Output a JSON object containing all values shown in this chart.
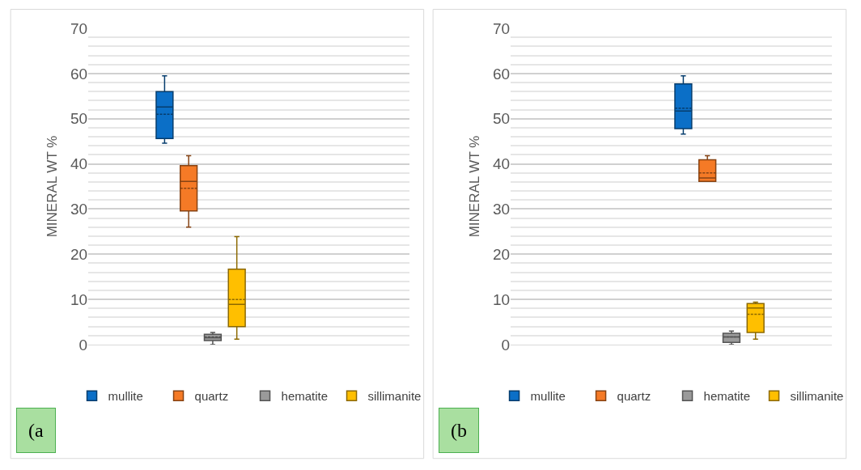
{
  "chart_data": [
    {
      "type": "box",
      "categories": [
        null
      ],
      "ylabel": "MINERAL WT %",
      "ylim": [
        0,
        70
      ],
      "yticks": [
        0,
        {
          "value": 2,
          "label": null
        },
        {
          "value": 4,
          "label": null
        },
        {
          "value": 6,
          "label": null
        },
        {
          "value": 8,
          "label": null
        },
        10,
        {
          "value": 12,
          "label": null
        },
        {
          "value": 14,
          "label": null
        },
        {
          "value": 16,
          "label": null
        },
        {
          "value": 18,
          "label": null
        },
        20,
        {
          "value": 22,
          "label": null
        },
        {
          "value": 24,
          "label": null
        },
        {
          "value": 26,
          "label": null
        },
        {
          "value": 28,
          "label": null
        },
        30,
        {
          "value": 32,
          "label": null
        },
        {
          "value": 34,
          "label": null
        },
        {
          "value": 36,
          "label": null
        },
        {
          "value": 38,
          "label": null
        },
        40,
        {
          "value": 42,
          "label": null
        },
        {
          "value": 44,
          "label": null
        },
        {
          "value": 46,
          "label": null
        },
        {
          "value": 48,
          "label": null
        },
        50,
        {
          "value": 52,
          "label": null
        },
        {
          "value": 54,
          "label": null
        },
        {
          "value": 56,
          "label": null
        },
        {
          "value": 58,
          "label": null
        },
        60,
        {
          "value": 62,
          "label": null
        },
        {
          "value": 64,
          "label": null
        },
        {
          "value": 66,
          "label": null
        },
        {
          "value": 68,
          "label": null
        },
        70
      ],
      "grid": "y",
      "legend": "bottom",
      "tick_labels": "y",
      "annotations": [
        "(a"
      ],
      "series": [
        {
          "name": "mullite",
          "color": "#0b6fc7",
          "boxes": [
            {
              "low": 44.6,
              "q1": 45.6,
              "median": 52.6,
              "q3": 56.0,
              "high": 59.5,
              "mean": 51.0
            }
          ]
        },
        {
          "name": "quartz",
          "color": "#f57a26",
          "boxes": [
            {
              "low": 26.0,
              "q1": 29.6,
              "median": 36.1,
              "q3": 39.6,
              "high": 41.8,
              "mean": 34.6
            }
          ]
        },
        {
          "name": "hematite",
          "color": "#9a9a9a",
          "boxes": [
            {
              "low": 0,
              "q1": 0.9,
              "median": 1.5,
              "q3": 2.3,
              "high": 2.7,
              "mean": 1.7
            }
          ]
        },
        {
          "name": "sillimanite",
          "color": "#ffbf00",
          "boxes": [
            {
              "low": 1.2,
              "q1": 4.0,
              "median": 8.9,
              "q3": 16.7,
              "high": 23.9,
              "mean": 10.0
            }
          ]
        }
      ]
    },
    {
      "type": "box",
      "categories": [
        null
      ],
      "ylabel": "MINERAL WT %",
      "ylim": [
        0,
        70
      ],
      "yticks": [
        0,
        {
          "value": 2,
          "label": null
        },
        {
          "value": 4,
          "label": null
        },
        {
          "value": 6,
          "label": null
        },
        {
          "value": 8,
          "label": null
        },
        10,
        {
          "value": 12,
          "label": null
        },
        {
          "value": 14,
          "label": null
        },
        {
          "value": 16,
          "label": null
        },
        {
          "value": 18,
          "label": null
        },
        20,
        {
          "value": 22,
          "label": null
        },
        {
          "value": 24,
          "label": null
        },
        {
          "value": 26,
          "label": null
        },
        {
          "value": 28,
          "label": null
        },
        30,
        {
          "value": 32,
          "label": null
        },
        {
          "value": 34,
          "label": null
        },
        {
          "value": 36,
          "label": null
        },
        {
          "value": 38,
          "label": null
        },
        40,
        {
          "value": 42,
          "label": null
        },
        {
          "value": 44,
          "label": null
        },
        {
          "value": 46,
          "label": null
        },
        {
          "value": 48,
          "label": null
        },
        50,
        {
          "value": 52,
          "label": null
        },
        {
          "value": 54,
          "label": null
        },
        {
          "value": 56,
          "label": null
        },
        {
          "value": 58,
          "label": null
        },
        60,
        {
          "value": 62,
          "label": null
        },
        {
          "value": 64,
          "label": null
        },
        {
          "value": 66,
          "label": null
        },
        {
          "value": 68,
          "label": null
        },
        70
      ],
      "grid": "y",
      "legend": "bottom",
      "tick_labels": "y",
      "annotations": [
        "(b"
      ],
      "series": [
        {
          "name": "mullite",
          "color": "#0b6fc7",
          "boxes": [
            {
              "low": 46.6,
              "q1": 47.8,
              "median": 51.7,
              "q3": 57.7,
              "high": 59.5,
              "mean": 52.3
            }
          ]
        },
        {
          "name": "quartz",
          "color": "#f57a26",
          "boxes": [
            {
              "low": 36.1,
              "q1": 36.1,
              "median": 36.9,
              "q3": 40.9,
              "high": 41.8,
              "mean": 38.0
            }
          ]
        },
        {
          "name": "hematite",
          "color": "#9a9a9a",
          "boxes": [
            {
              "low": 0,
              "q1": 0.5,
              "median": 1.7,
              "q3": 2.5,
              "high": 3.0,
              "mean": 1.7
            }
          ]
        },
        {
          "name": "sillimanite",
          "color": "#ffbf00",
          "boxes": [
            {
              "low": 1.2,
              "q1": 2.7,
              "median": 8.1,
              "q3": 9.1,
              "high": 9.4,
              "mean": 6.7
            }
          ]
        }
      ]
    }
  ]
}
